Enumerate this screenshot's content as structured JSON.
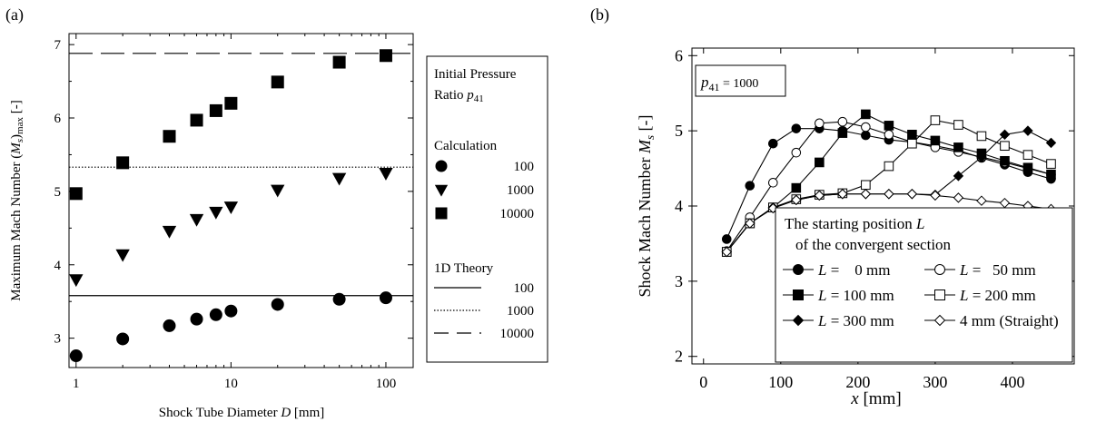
{
  "chart_data": [
    {
      "type": "scatter",
      "panel_label": "(a)",
      "xlabel": "Shock Tube Diameter D [mm]",
      "xlabel_parts": [
        "Shock Tube Diameter ",
        "D",
        " [mm]"
      ],
      "ylabel": "Maximum Mach Number (Ms)max [-]",
      "x_scale": "log",
      "xlim": [
        0.9,
        150
      ],
      "ylim": [
        2.6,
        7.15
      ],
      "x_ticks": [
        {
          "v": 1,
          "label": "1"
        },
        {
          "v": 10,
          "label": "10"
        },
        {
          "v": 100,
          "label": "100"
        }
      ],
      "y_ticks": [
        {
          "v": 3,
          "label": "3"
        },
        {
          "v": 4,
          "label": "4"
        },
        {
          "v": 5,
          "label": "5"
        },
        {
          "v": 6,
          "label": "6"
        },
        {
          "v": 7,
          "label": "7"
        }
      ],
      "legend": {
        "title_line1": "Initial Pressure",
        "title_line2": "Ratio p41",
        "calc_header": "Calculation",
        "theory_header": "1D Theory"
      },
      "series": [
        {
          "name": "100",
          "group": "Calculation",
          "marker": "circle",
          "x": [
            1,
            2,
            4,
            6,
            8,
            10,
            20,
            50,
            100
          ],
          "y": [
            2.76,
            2.99,
            3.17,
            3.26,
            3.32,
            3.37,
            3.46,
            3.53,
            3.55
          ]
        },
        {
          "name": "1000",
          "group": "Calculation",
          "marker": "triangle-down",
          "x": [
            1,
            2,
            4,
            6,
            8,
            10,
            20,
            50,
            100
          ],
          "y": [
            3.8,
            4.14,
            4.46,
            4.62,
            4.72,
            4.79,
            5.02,
            5.18,
            5.25
          ]
        },
        {
          "name": "10000",
          "group": "Calculation",
          "marker": "square",
          "x": [
            1,
            2,
            4,
            6,
            8,
            10,
            20,
            50,
            100
          ],
          "y": [
            4.97,
            5.39,
            5.75,
            5.97,
            6.1,
            6.2,
            6.49,
            6.76,
            6.85
          ]
        }
      ],
      "theory_lines": [
        {
          "name": "100",
          "style": "solid",
          "y": 3.58
        },
        {
          "name": "1000",
          "style": "dotted",
          "y": 5.33
        },
        {
          "name": "10000",
          "style": "dashed",
          "y": 6.88
        }
      ]
    },
    {
      "type": "line",
      "panel_label": "(b)",
      "xlabel": "x [mm]",
      "ylabel": "Shock Mach Number Ms [-]",
      "xlim": [
        -15,
        480
      ],
      "ylim": [
        1.9,
        6.1
      ],
      "x_ticks": [
        {
          "v": 0,
          "label": "0"
        },
        {
          "v": 100,
          "label": "100"
        },
        {
          "v": 200,
          "label": "200"
        },
        {
          "v": 300,
          "label": "300"
        },
        {
          "v": 400,
          "label": "400"
        }
      ],
      "y_ticks": [
        {
          "v": 2,
          "label": "2"
        },
        {
          "v": 3,
          "label": "3"
        },
        {
          "v": 4,
          "label": "4"
        },
        {
          "v": 5,
          "label": "5"
        },
        {
          "v": 6,
          "label": "6"
        }
      ],
      "annotation": {
        "var": "p",
        "sub": "41",
        "rest": " = 1000"
      },
      "legend": {
        "title_line1": "The starting position L",
        "title_line2": "of the convergent section"
      },
      "series": [
        {
          "name": "L =    0 mm",
          "marker": "circle",
          "x": [
            30,
            60,
            90,
            120,
            150,
            180,
            210,
            240,
            270,
            300,
            330,
            360,
            390,
            420,
            450
          ],
          "y": [
            3.56,
            4.27,
            4.83,
            5.03,
            5.03,
            5.0,
            4.94,
            4.88,
            4.85,
            4.8,
            4.74,
            4.64,
            4.55,
            4.45,
            4.36
          ]
        },
        {
          "name": "L =   50 mm",
          "marker": "circle-open",
          "x": [
            30,
            60,
            90,
            120,
            150,
            180,
            210,
            240,
            270,
            300,
            330,
            360,
            390,
            420,
            450
          ],
          "y": [
            3.4,
            3.85,
            4.31,
            4.71,
            5.1,
            5.12,
            5.05,
            4.95,
            4.85,
            4.78,
            4.72,
            4.65,
            4.58,
            4.5,
            4.42
          ]
        },
        {
          "name": "L = 100 mm",
          "marker": "square",
          "x": [
            30,
            60,
            90,
            120,
            150,
            180,
            210,
            240,
            270,
            300,
            330,
            360,
            390,
            420,
            450
          ],
          "y": [
            3.39,
            3.77,
            3.98,
            4.24,
            4.58,
            4.97,
            5.22,
            5.07,
            4.95,
            4.87,
            4.78,
            4.7,
            4.6,
            4.51,
            4.42
          ]
        },
        {
          "name": "L = 200 mm",
          "marker": "square-open",
          "x": [
            30,
            60,
            90,
            120,
            150,
            180,
            210,
            240,
            270,
            300,
            330,
            360,
            390,
            420,
            450
          ],
          "y": [
            3.39,
            3.77,
            3.98,
            4.09,
            4.15,
            4.17,
            4.28,
            4.53,
            4.83,
            5.14,
            5.08,
            4.93,
            4.8,
            4.68,
            4.56
          ]
        },
        {
          "name": "L = 300 mm",
          "marker": "diamond",
          "x": [
            30,
            60,
            90,
            120,
            150,
            180,
            210,
            240,
            270,
            300,
            330,
            360,
            390,
            420,
            450
          ],
          "y": [
            3.39,
            3.77,
            3.98,
            4.08,
            4.14,
            4.16,
            4.16,
            4.16,
            4.16,
            4.15,
            4.4,
            4.65,
            4.95,
            5.0,
            4.84
          ]
        },
        {
          "name": "4 mm (Straight)",
          "marker": "diamond-open",
          "x": [
            30,
            60,
            90,
            120,
            150,
            180,
            210,
            240,
            270,
            300,
            330,
            360,
            390,
            420,
            450
          ],
          "y": [
            3.39,
            3.77,
            3.97,
            4.08,
            4.14,
            4.16,
            4.16,
            4.16,
            4.16,
            4.14,
            4.11,
            4.07,
            4.04,
            4.0,
            3.96
          ]
        }
      ]
    }
  ]
}
